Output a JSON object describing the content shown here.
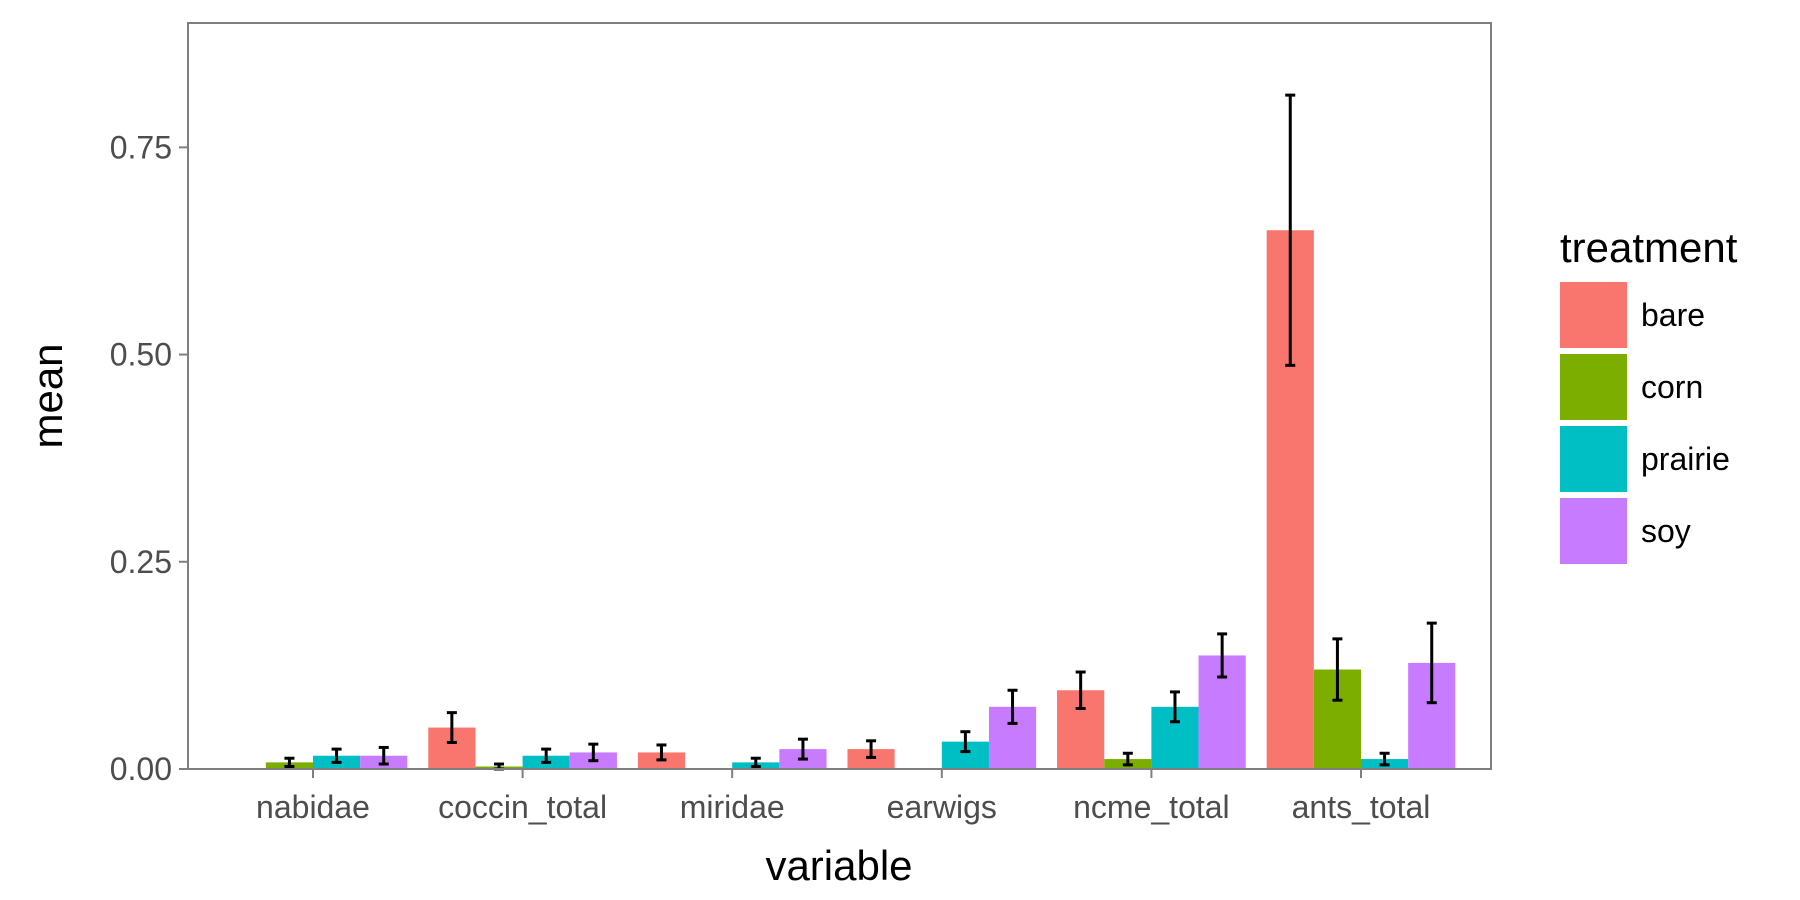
{
  "chart_data": {
    "type": "bar",
    "title": "",
    "xlabel": "variable",
    "ylabel": "mean",
    "ylim": [
      0,
      0.9
    ],
    "yticks": [
      0.0,
      0.25,
      0.5,
      0.75
    ],
    "ytick_labels": [
      "0.00",
      "0.25",
      "0.50",
      "0.75"
    ],
    "grid": false,
    "legend_title": "treatment",
    "legend_position": "right",
    "categories": [
      "nabidae",
      "coccin_total",
      "miridae",
      "earwigs",
      "ncme_total",
      "ants_total"
    ],
    "series": [
      {
        "name": "bare",
        "color": "#F8766D",
        "values": [
          null,
          0.05,
          0.02,
          0.024,
          0.095,
          0.65
        ],
        "errors": [
          null,
          0.018,
          0.009,
          0.01,
          0.022,
          0.163
        ]
      },
      {
        "name": "corn",
        "color": "#7CAE00",
        "values": [
          0.008,
          0.003,
          null,
          null,
          0.012,
          0.12
        ],
        "errors": [
          0.005,
          0.003,
          null,
          null,
          0.007,
          0.037
        ]
      },
      {
        "name": "prairie",
        "color": "#00BFC4",
        "values": [
          0.016,
          0.016,
          0.008,
          0.033,
          0.075,
          0.012
        ],
        "errors": [
          0.008,
          0.008,
          0.005,
          0.012,
          0.018,
          0.007
        ]
      },
      {
        "name": "soy",
        "color": "#C77CFF",
        "values": [
          0.016,
          0.02,
          0.024,
          0.075,
          0.137,
          0.128
        ],
        "errors": [
          0.01,
          0.01,
          0.012,
          0.02,
          0.026,
          0.048
        ]
      }
    ]
  }
}
